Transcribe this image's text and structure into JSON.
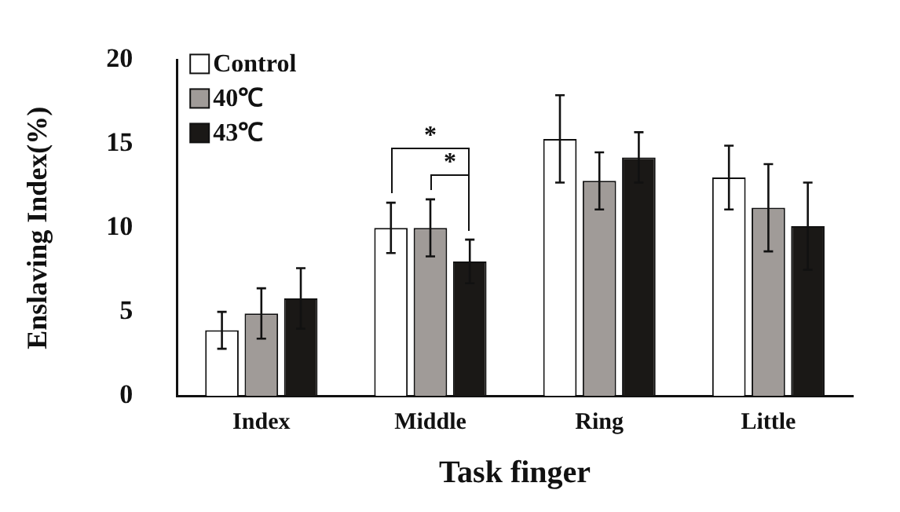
{
  "chart_data": {
    "type": "bar",
    "xlabel": "Task finger",
    "ylabel": "Enslaving Index(%)",
    "categories": [
      "Index",
      "Middle",
      "Ring",
      "Little"
    ],
    "series": [
      {
        "name": "Control",
        "color": "#ffffff",
        "values": [
          3.9,
          10.0,
          15.3,
          13.0
        ],
        "errors": [
          1.1,
          1.5,
          2.6,
          1.9
        ]
      },
      {
        "name": "40℃",
        "color": "#a09b98",
        "values": [
          4.9,
          10.0,
          12.8,
          11.2
        ],
        "errors": [
          1.5,
          1.7,
          1.7,
          2.6
        ]
      },
      {
        "name": "43℃",
        "color": "#1a1816",
        "values": [
          5.8,
          8.0,
          14.2,
          10.1
        ],
        "errors": [
          1.8,
          1.3,
          1.5,
          2.6
        ]
      }
    ],
    "ylim": [
      0,
      20
    ],
    "yticks": [
      0,
      5,
      10,
      15,
      20
    ],
    "grid": false,
    "legend": "top left",
    "annotations": [
      {
        "text": "*",
        "x": "Middle",
        "y": 11.5
      },
      {
        "text": "*",
        "x": "Middle",
        "y": 11.7
      }
    ]
  }
}
